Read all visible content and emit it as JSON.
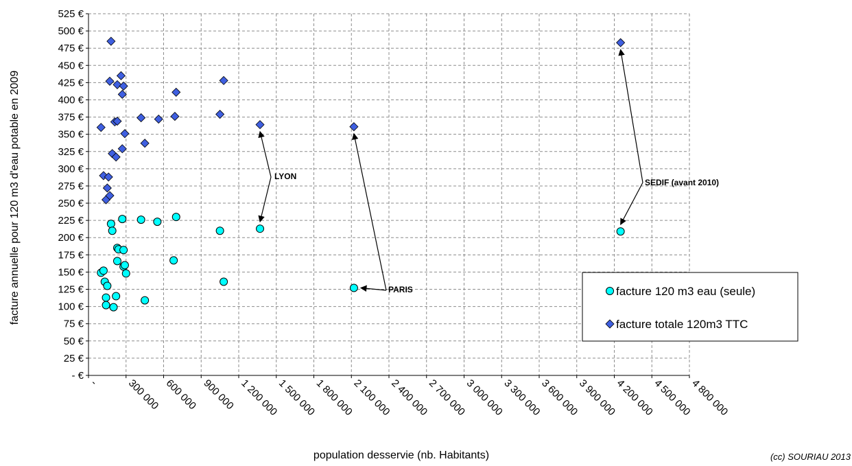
{
  "chart_data": {
    "type": "scatter",
    "title": "",
    "xlabel": "population desservie (nb. Habitants)",
    "ylabel": "facture annuelle pour 120 m3 d'eau potable en 2009",
    "xlim": [
      0,
      4800000
    ],
    "ylim": [
      0,
      525
    ],
    "grid": true,
    "x_ticks": [
      "-",
      "300 000",
      "600 000",
      "900 000",
      "1 200 000",
      "1 500 000",
      "1 800 000",
      "2 100 000",
      "2 400 000",
      "2 700 000",
      "3 000 000",
      "3 300 000",
      "3 600 000",
      "3 900 000",
      "4 200 000",
      "4 500 000",
      "4 800 000"
    ],
    "y_ticks": [
      "-   €",
      "25 €",
      "50 €",
      "75 €",
      "100 €",
      "125 €",
      "150 €",
      "175 €",
      "200 €",
      "225 €",
      "250 €",
      "275 €",
      "300 €",
      "325 €",
      "350 €",
      "375 €",
      "400 €",
      "425 €",
      "450 €",
      "475 €",
      "500 €",
      "525 €"
    ],
    "legend_position": "right",
    "series": [
      {
        "name": "facture 120 m3 eau (seule)",
        "marker": "circle",
        "color": "#00ffff",
        "points": [
          [
            100000,
            149
          ],
          [
            120000,
            152
          ],
          [
            130000,
            136
          ],
          [
            140000,
            113
          ],
          [
            150000,
            130
          ],
          [
            140000,
            102
          ],
          [
            180000,
            220
          ],
          [
            190000,
            210
          ],
          [
            200000,
            99
          ],
          [
            220000,
            115
          ],
          [
            230000,
            185
          ],
          [
            240000,
            183
          ],
          [
            230000,
            166
          ],
          [
            270000,
            227
          ],
          [
            280000,
            182
          ],
          [
            280000,
            158
          ],
          [
            290000,
            160
          ],
          [
            300000,
            148
          ],
          [
            420000,
            226
          ],
          [
            450000,
            109
          ],
          [
            550000,
            223
          ],
          [
            680000,
            167
          ],
          [
            700000,
            230
          ],
          [
            1050000,
            210
          ],
          [
            1080000,
            136
          ],
          [
            1370000,
            213
          ],
          [
            2120000,
            127
          ],
          [
            4250000,
            209
          ]
        ]
      },
      {
        "name": "facture totale 120m3 TTC",
        "marker": "diamond",
        "color": "#3f5fe0",
        "points": [
          [
            100000,
            360
          ],
          [
            120000,
            290
          ],
          [
            140000,
            255
          ],
          [
            150000,
            272
          ],
          [
            160000,
            288
          ],
          [
            170000,
            261
          ],
          [
            170000,
            427
          ],
          [
            180000,
            485
          ],
          [
            190000,
            322
          ],
          [
            210000,
            368
          ],
          [
            220000,
            317
          ],
          [
            230000,
            369
          ],
          [
            230000,
            422
          ],
          [
            260000,
            435
          ],
          [
            270000,
            408
          ],
          [
            270000,
            329
          ],
          [
            280000,
            420
          ],
          [
            290000,
            351
          ],
          [
            420000,
            374
          ],
          [
            450000,
            337
          ],
          [
            560000,
            372
          ],
          [
            690000,
            376
          ],
          [
            700000,
            411
          ],
          [
            1050000,
            379
          ],
          [
            1080000,
            428
          ],
          [
            1370000,
            364
          ],
          [
            2120000,
            361
          ],
          [
            4250000,
            483
          ]
        ]
      }
    ],
    "annotations": [
      {
        "text": "LYON",
        "arrows_to": [
          [
            1370000,
            362
          ],
          [
            1370000,
            215
          ]
        ]
      },
      {
        "text": "PARIS",
        "arrows_to": [
          [
            2120000,
            359
          ],
          [
            2120000,
            127
          ]
        ]
      },
      {
        "text": "SEDIF (avant 2010)",
        "arrows_to": [
          [
            4250000,
            481
          ],
          [
            4250000,
            211
          ]
        ]
      }
    ]
  },
  "credit": "(cc) SOURIAU 2013"
}
